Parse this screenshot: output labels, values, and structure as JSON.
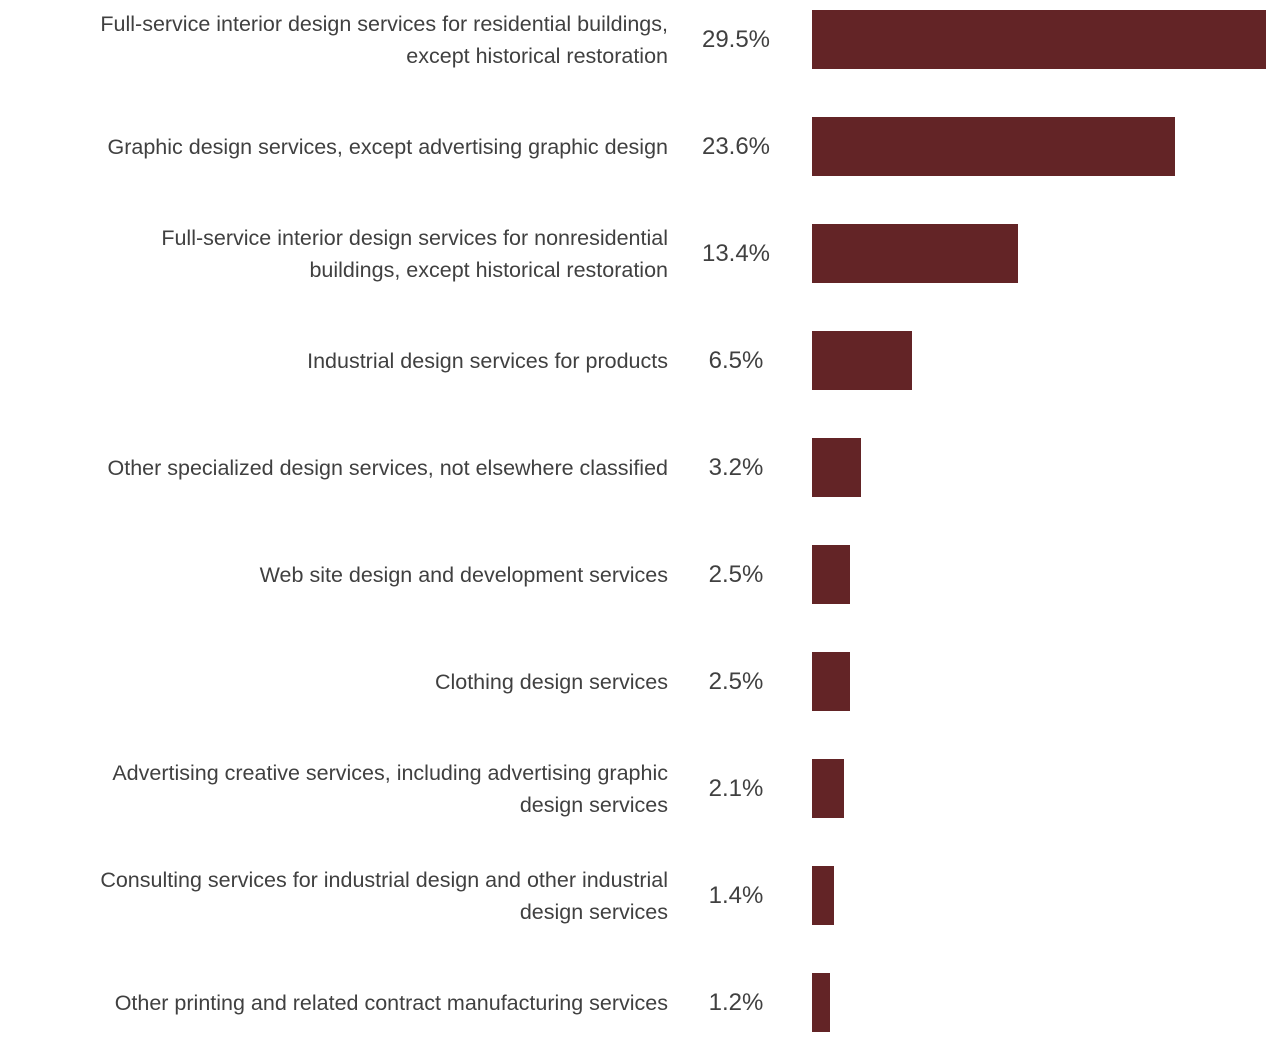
{
  "chart_data": {
    "type": "bar",
    "orientation": "horizontal",
    "title": "",
    "xlabel": "",
    "ylabel": "",
    "grid": false,
    "bar_color": "#632426",
    "xlim": [
      0,
      29.5
    ],
    "categories": [
      "Full-service interior design services for residential buildings,\nexcept historical restoration",
      "Graphic design services, except advertising graphic design",
      "Full-service interior design services for nonresidential\nbuildings, except historical restoration",
      "Industrial design services for products",
      "Other specialized design services, not elsewhere classified",
      "Web site design and development services",
      "Clothing design services",
      "Advertising creative services, including advertising graphic\ndesign services",
      "Consulting services for industrial design and other industrial\ndesign services",
      "Other printing and related contract manufacturing services"
    ],
    "values": [
      29.5,
      23.6,
      13.4,
      6.5,
      3.2,
      2.5,
      2.5,
      2.1,
      1.4,
      1.2
    ],
    "data_labels": [
      "29.5%",
      "23.6%",
      "13.4%",
      "6.5%",
      "3.2%",
      "2.5%",
      "2.5%",
      "2.1%",
      "1.4%",
      "1.2%"
    ]
  }
}
